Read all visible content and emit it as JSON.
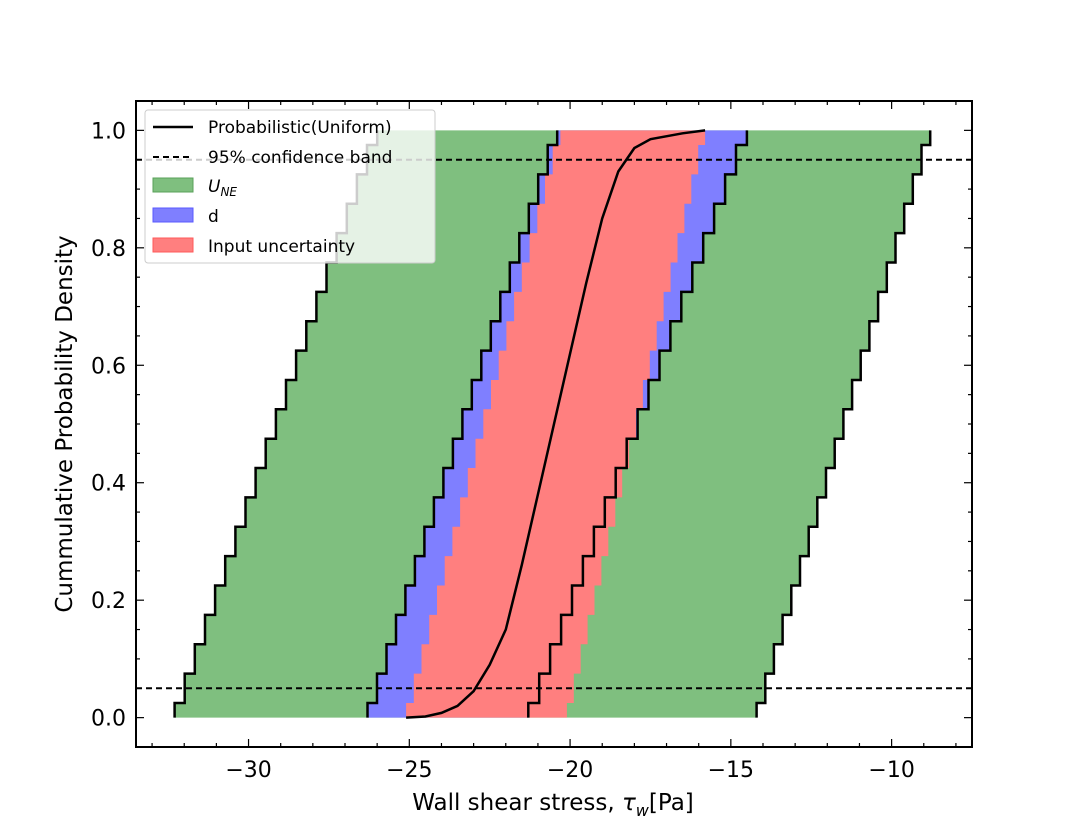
{
  "chart_data": {
    "type": "area",
    "xlabel": "Wall shear stress, τw[Pa]",
    "xlabel_main": "Wall shear stress, ",
    "xlabel_sym": "τ",
    "xlabel_sub": "w",
    "xlabel_unit": "[Pa]",
    "ylabel": "Cummulative Probability Density",
    "xlim": [
      -33.5,
      -7.5
    ],
    "ylim": [
      -0.05,
      1.05
    ],
    "xticks": [
      -30,
      -25,
      -20,
      -15,
      -10
    ],
    "xtick_labels": [
      "−30",
      "−25",
      "−20",
      "−15",
      "−10"
    ],
    "yticks": [
      0.0,
      0.2,
      0.4,
      0.6,
      0.8,
      1.0
    ],
    "ytick_labels": [
      "0.0",
      "0.2",
      "0.4",
      "0.6",
      "0.8",
      "1.0"
    ],
    "grid": false,
    "legend_position": "top-left",
    "legend": [
      {
        "label": "Probabilistic(Uniform)",
        "kind": "solid-line"
      },
      {
        "label": "95% confidence band",
        "kind": "dashed-line"
      },
      {
        "label": "U",
        "sub": "NE",
        "italic": true,
        "kind": "patch",
        "color": "#7fbf7f"
      },
      {
        "label": "d",
        "kind": "patch",
        "color": "#7f7fff"
      },
      {
        "label": "Input uncertainty",
        "kind": "patch",
        "color": "#ff7f7f"
      }
    ],
    "confidence_band_y": [
      0.05,
      0.95
    ],
    "colors": {
      "U_NE": "#7fbf7f",
      "d": "#7f7fff",
      "input": "#ff7f7f",
      "line": "#000000"
    },
    "series": [
      {
        "name": "U_NE",
        "lower": {
          "x0": -32.3,
          "x1": -26.0
        },
        "upper": {
          "x0": -14.2,
          "x1": -8.8
        },
        "steps": 20
      },
      {
        "name": "d",
        "lower": {
          "x0": -26.3,
          "x1": -20.4
        },
        "upper": {
          "x0": -21.3,
          "x1": -14.5
        },
        "steps": 20
      },
      {
        "name": "Input uncertainty",
        "lower": {
          "x0": -25.1,
          "x1": -20.3
        },
        "upper": {
          "x0": -20.1,
          "x1": -15.8
        },
        "steps": 20
      },
      {
        "name": "Probabilistic(Uniform)",
        "x": [
          -25.1,
          -24.5,
          -24.0,
          -23.5,
          -23.0,
          -22.5,
          -22.0,
          -21.5,
          -21.0,
          -20.5,
          -20.0,
          -19.5,
          -19.0,
          -18.5,
          -18.0,
          -17.5,
          -16.5,
          -15.8
        ],
        "y": [
          0.0,
          0.002,
          0.008,
          0.02,
          0.045,
          0.09,
          0.15,
          0.26,
          0.38,
          0.5,
          0.62,
          0.74,
          0.85,
          0.93,
          0.97,
          0.985,
          0.995,
          1.0
        ]
      }
    ]
  }
}
